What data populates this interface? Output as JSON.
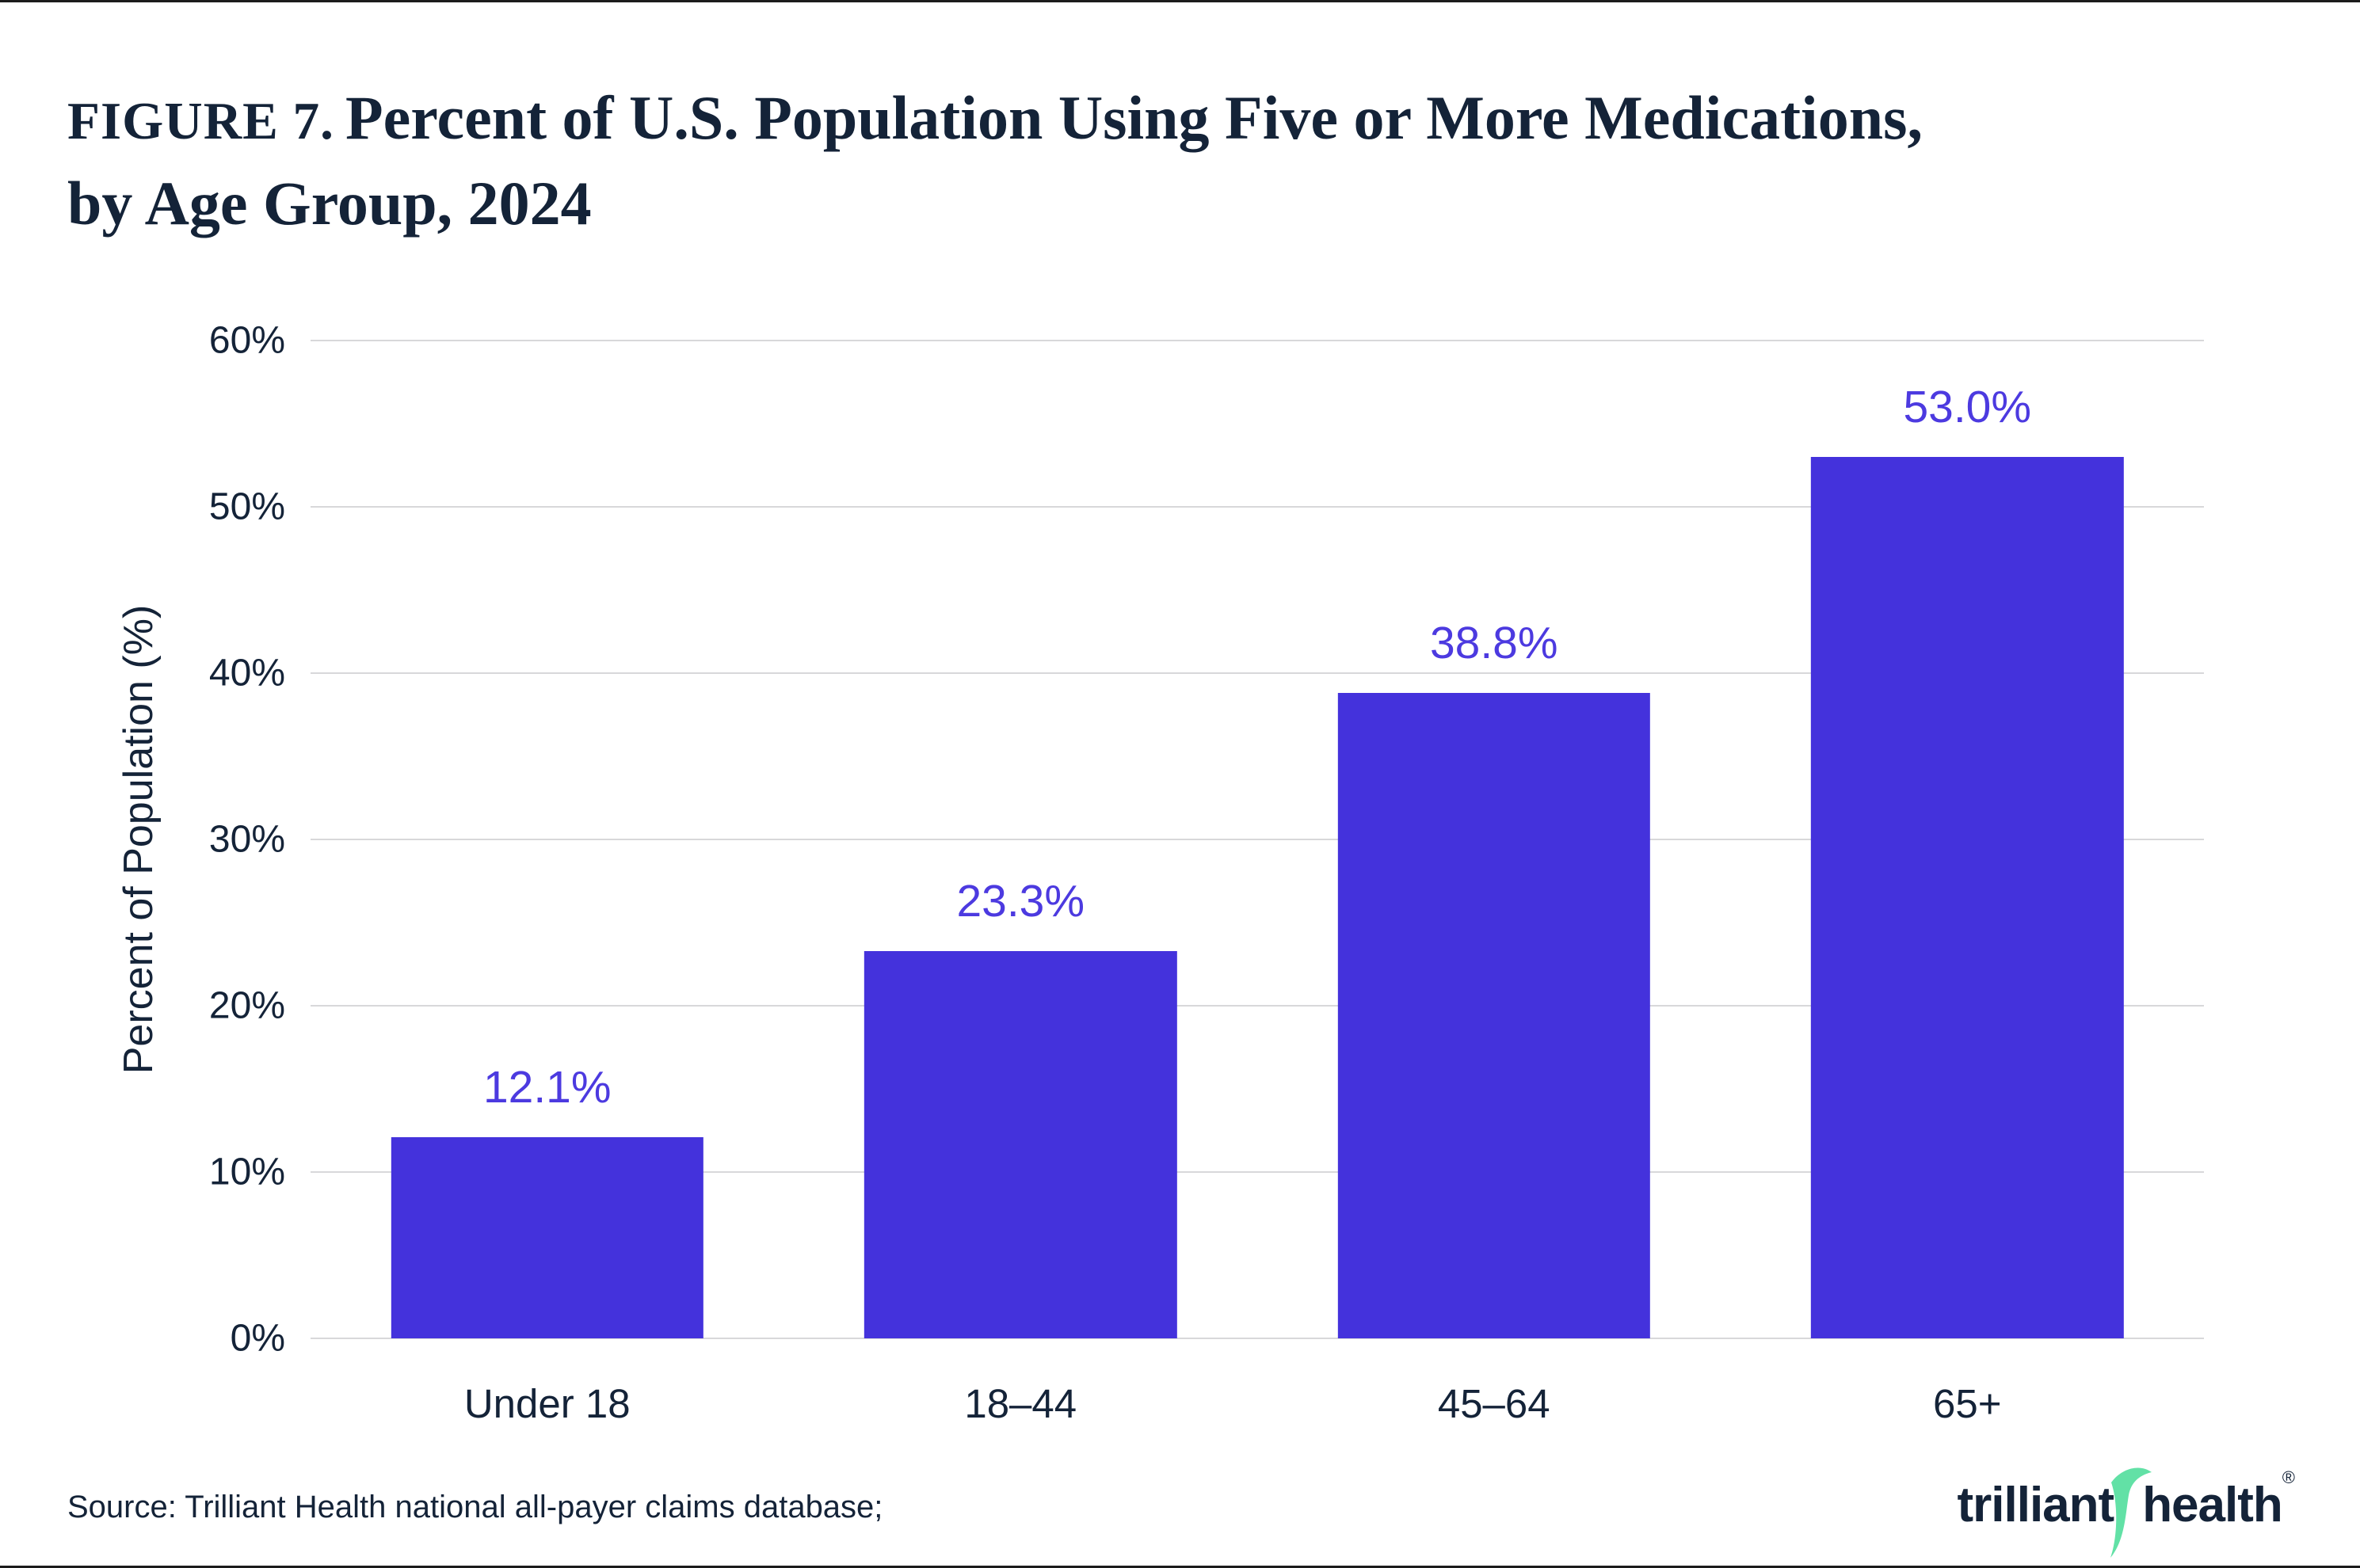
{
  "figure": {
    "title": {
      "figure_label": "FIGURE 7.",
      "line1": "Percent of U.S. Population Using Five or More Medications,",
      "line2": "by Age Group, 2024"
    }
  },
  "chart_data": {
    "type": "bar",
    "title": "Percent of U.S. Population Using Five or More Medications, by Age Group, 2024",
    "categories": [
      "Under 18",
      "18–44",
      "45–64",
      "65+"
    ],
    "values": [
      12.1,
      23.3,
      38.8,
      53.0
    ],
    "value_labels": [
      "12.1%",
      "23.3%",
      "38.8%",
      "53.0%"
    ],
    "xlabel": "",
    "ylabel": "Percent of Population (%)",
    "ylim": [
      0,
      60
    ],
    "yticks": [
      0,
      10,
      20,
      30,
      40,
      50,
      60
    ],
    "ytick_labels": [
      "0%",
      "10%",
      "20%",
      "30%",
      "40%",
      "50%",
      "60%"
    ],
    "grid": "horizontal",
    "legend": "none"
  },
  "colors": {
    "bar": "#4432DC",
    "value_label": "#4C3AE0",
    "text_navy": "#142338",
    "gridline": "#D8D8DA",
    "logo_green": "#62E1A6"
  },
  "footer": {
    "source": "Source: Trilliant Health national all-payer claims database;",
    "logo": {
      "word1": "trilliant",
      "word2": "health",
      "registered": "®",
      "icon": "swoosh-icon"
    }
  }
}
